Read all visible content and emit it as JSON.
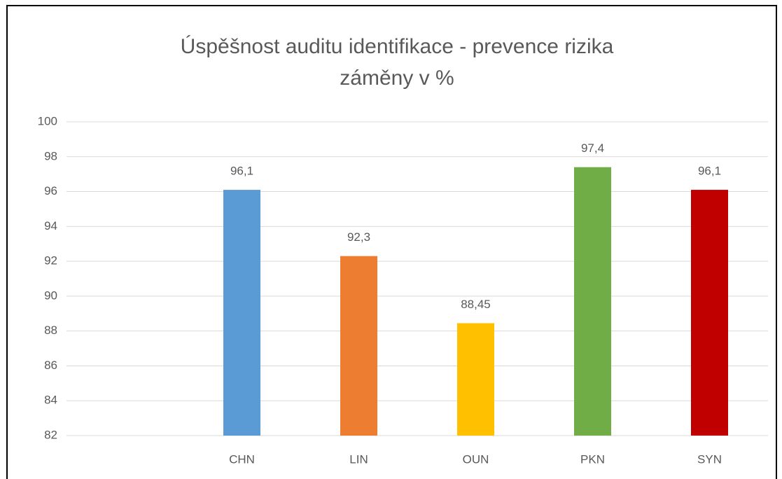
{
  "chart_data": {
    "type": "bar",
    "title": [
      "Úspěšnost auditu identifikace - prevence rizika",
      "záměny v %"
    ],
    "categories": [
      null,
      "CHN",
      "LIN",
      "OUN",
      "PKN",
      "SYN"
    ],
    "values": [
      null,
      96.1,
      92.3,
      88.45,
      97.4,
      96.1
    ],
    "value_labels": [
      null,
      "96,1",
      "92,3",
      "88,45",
      "97,4",
      "96,1"
    ],
    "colors": [
      null,
      "#5b9bd5",
      "#ed7d31",
      "#ffc000",
      "#70ad47",
      "#c00000"
    ],
    "ylim": [
      82,
      100
    ],
    "yticks": [
      82,
      84,
      86,
      88,
      90,
      92,
      94,
      96,
      98,
      100
    ],
    "grid": true
  }
}
